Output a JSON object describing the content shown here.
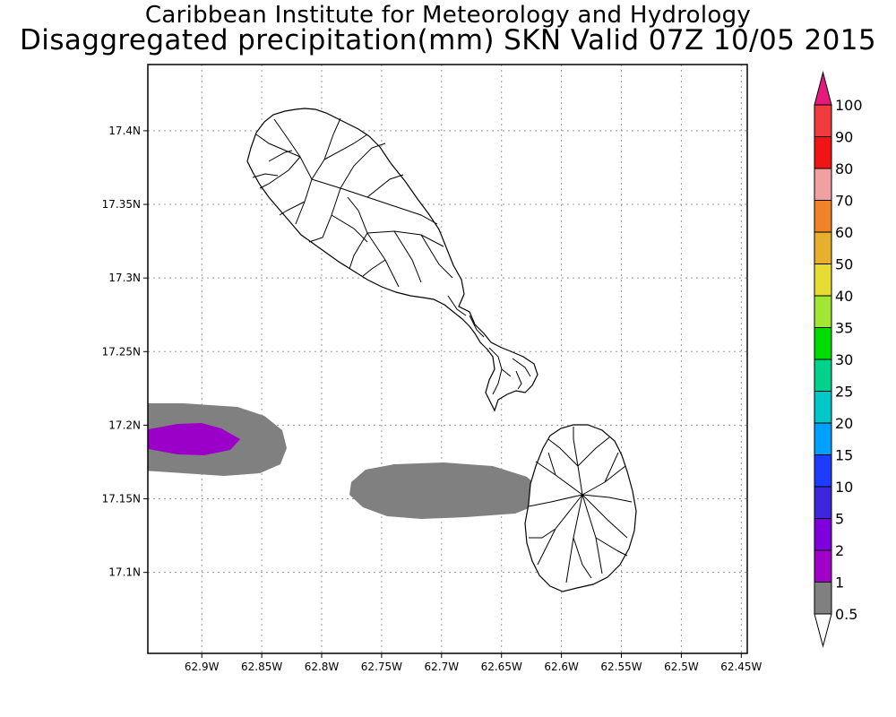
{
  "title": "Caribbean Institute for Meteorology and Hydrology",
  "subtitle": "Disaggregated precipitation(mm) SKN Valid 07Z 10/05 2015",
  "map": {
    "x_axis": {
      "ticks": [
        "62.9W",
        "62.85W",
        "62.8W",
        "62.75W",
        "62.7W",
        "62.65W",
        "62.6W",
        "62.55W",
        "62.5W",
        "62.45W"
      ],
      "tick_values": [
        -62.9,
        -62.85,
        -62.8,
        -62.75,
        -62.7,
        -62.65,
        -62.6,
        -62.55,
        -62.5,
        -62.45
      ],
      "range": [
        -62.945,
        -62.445
      ]
    },
    "y_axis": {
      "ticks": [
        "17.1N",
        "17.15N",
        "17.2N",
        "17.25N",
        "17.3N",
        "17.35N",
        "17.4N"
      ],
      "tick_values": [
        17.1,
        17.15,
        17.2,
        17.25,
        17.3,
        17.35,
        17.4
      ],
      "range": [
        17.045,
        17.445
      ]
    },
    "grid": true,
    "grid_style": "dotted",
    "islands": [
      "St Kitts",
      "Nevis"
    ],
    "precipitation_areas": [
      {
        "level": "0.5-1",
        "color": "#808080",
        "near": "62.92W-62.83W, 17.2N"
      },
      {
        "level": "1-2",
        "color": "#9b00c8",
        "near": "62.9W, 17.2N"
      },
      {
        "level": "0.5-1",
        "color": "#808080",
        "near": "62.77W-62.62W, 17.16N"
      }
    ]
  },
  "legend": {
    "placement": "right",
    "extend_top_color": "#e6197f",
    "extend_bottom_color": "#ffffff",
    "bins": [
      {
        "upper": "100",
        "lower": "90",
        "color": "#f03c3c"
      },
      {
        "upper": "90",
        "lower": "80",
        "color": "#f01414"
      },
      {
        "upper": "80",
        "lower": "70",
        "color": "#f0a0a0"
      },
      {
        "upper": "70",
        "lower": "60",
        "color": "#f08228"
      },
      {
        "upper": "60",
        "lower": "50",
        "color": "#e6af2d"
      },
      {
        "upper": "50",
        "lower": "40",
        "color": "#e6dc32"
      },
      {
        "upper": "40",
        "lower": "35",
        "color": "#a0e632"
      },
      {
        "upper": "35",
        "lower": "30",
        "color": "#00dc00"
      },
      {
        "upper": "30",
        "lower": "25",
        "color": "#00d28c"
      },
      {
        "upper": "25",
        "lower": "20",
        "color": "#00c8c8"
      },
      {
        "upper": "20",
        "lower": "15",
        "color": "#00a0ff"
      },
      {
        "upper": "15",
        "lower": "10",
        "color": "#1e3cff"
      },
      {
        "upper": "10",
        "lower": "5",
        "color": "#3c28dc"
      },
      {
        "upper": "5",
        "lower": "2",
        "color": "#7d00dc"
      },
      {
        "upper": "2",
        "lower": "1",
        "color": "#a000c8"
      },
      {
        "upper": "1",
        "lower": "0.5",
        "color": "#808080"
      }
    ],
    "labels": [
      "100",
      "90",
      "80",
      "70",
      "60",
      "50",
      "40",
      "35",
      "30",
      "25",
      "20",
      "15",
      "10",
      "5",
      "2",
      "1",
      "0.5"
    ]
  }
}
